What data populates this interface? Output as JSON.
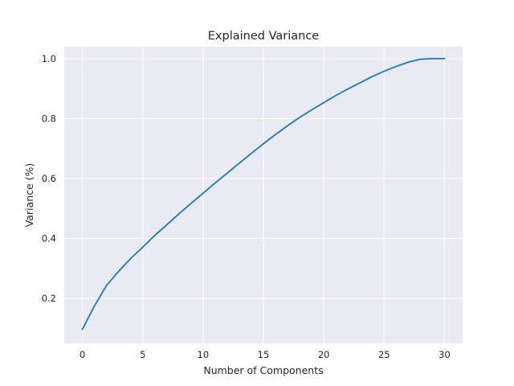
{
  "chart_data": {
    "type": "line",
    "title": "Explained Variance",
    "xlabel": "Number of Components",
    "ylabel": "Variance (%)",
    "xlim": [
      -1.5,
      31.5
    ],
    "ylim": [
      0.05,
      1.04
    ],
    "x_ticks": [
      0,
      5,
      10,
      15,
      20,
      25,
      30
    ],
    "x_tick_labels": [
      "0",
      "5",
      "10",
      "15",
      "20",
      "25",
      "30"
    ],
    "y_ticks": [
      0.2,
      0.4,
      0.6,
      0.8,
      1.0
    ],
    "y_tick_labels": [
      "0.2",
      "0.4",
      "0.6",
      "0.8",
      "1.0"
    ],
    "grid": true,
    "background_color": "#eaeaf2",
    "grid_color": "#ffffff",
    "series": [
      {
        "color": "#1f77b4",
        "x": [
          0,
          1,
          2,
          3,
          4,
          5,
          6,
          7,
          8,
          9,
          10,
          11,
          12,
          13,
          14,
          15,
          16,
          17,
          18,
          19,
          20,
          21,
          22,
          23,
          24,
          25,
          26,
          27,
          28,
          29,
          30
        ],
        "values": [
          0.097,
          0.175,
          0.243,
          0.29,
          0.333,
          0.371,
          0.41,
          0.446,
          0.482,
          0.517,
          0.551,
          0.585,
          0.618,
          0.651,
          0.684,
          0.716,
          0.747,
          0.776,
          0.804,
          0.829,
          0.853,
          0.877,
          0.899,
          0.919,
          0.94,
          0.958,
          0.974,
          0.988,
          0.998,
          1.0,
          1.0
        ]
      }
    ]
  }
}
